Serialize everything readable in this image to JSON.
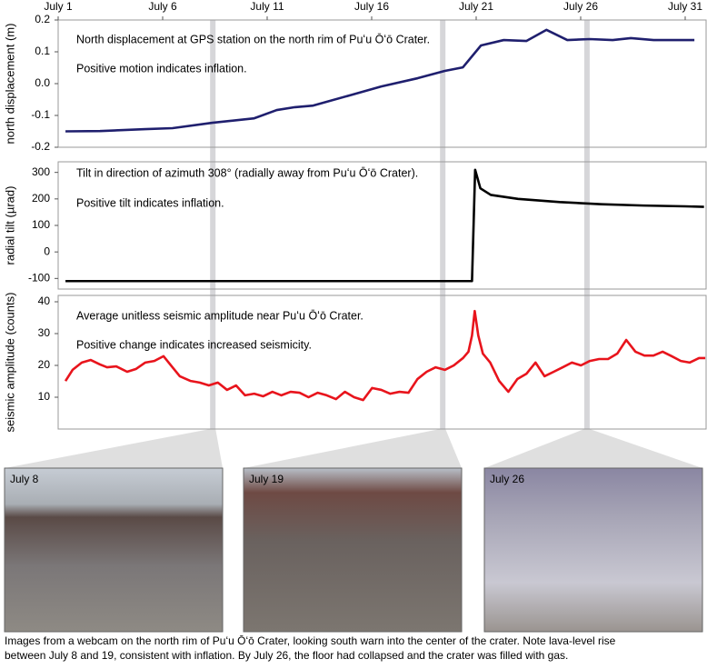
{
  "chart_data": [
    {
      "type": "line",
      "ylabel": "north displacement (m)",
      "annotations": [
        "North displacement at GPS station on the north rim of Puʻu Ōʻō Crater.",
        "Positive motion indicates inflation."
      ],
      "x": [
        1.35,
        3.0,
        5.17,
        6.47,
        8.38,
        10.38,
        11.46,
        12.33,
        13.2,
        14.94,
        16.46,
        18.2,
        19.5,
        20.36,
        21.23,
        22.32,
        23.4,
        24.36,
        25.36,
        26.44,
        27.53,
        28.4,
        29.49,
        30.79,
        31.44
      ],
      "values": [
        -0.15,
        -0.149,
        -0.143,
        -0.14,
        -0.123,
        -0.109,
        -0.083,
        -0.074,
        -0.069,
        -0.037,
        -0.009,
        0.017,
        0.04,
        0.051,
        0.12,
        0.137,
        0.134,
        0.169,
        0.137,
        0.14,
        0.137,
        0.143,
        0.137,
        0.137,
        0.137
      ],
      "color": "#1f1f6e",
      "xlim": [
        1,
        32
      ],
      "xticks": [
        {
          "value": 1,
          "label": "July 1"
        },
        {
          "value": 6,
          "label": "July 6"
        },
        {
          "value": 11,
          "label": "July 11"
        },
        {
          "value": 16,
          "label": "July 16"
        },
        {
          "value": 21,
          "label": "July 21"
        },
        {
          "value": 26,
          "label": "July 26"
        },
        {
          "value": 31,
          "label": "July 31"
        }
      ],
      "ylim": [
        -0.2,
        0.2
      ],
      "yticks": [
        0.2,
        0.1,
        {
          "value": 0,
          "label": "0.0"
        },
        -0.1,
        -0.2
      ]
    },
    {
      "type": "line",
      "ylabel": "radial tilt (µrad)",
      "annotations": [
        "Tilt in direction of azimuth 308° (radially away from Puʻu Ōʻō Crater).",
        "Positive tilt indicates inflation."
      ],
      "x": [
        1.35,
        10,
        20.8,
        20.95,
        21.2,
        21.7,
        23,
        25,
        27,
        29,
        31,
        31.9
      ],
      "values": [
        -110,
        -110,
        -110,
        310,
        240,
        215,
        200,
        188,
        180,
        175,
        172,
        170
      ],
      "color": "#000000",
      "xlim": [
        1,
        32
      ],
      "ylim": [
        -140,
        340
      ],
      "yticks": [
        300,
        200,
        100,
        0,
        -100
      ]
    },
    {
      "type": "line",
      "ylabel": "seismic amplitude (counts)",
      "annotations": [
        "Average unitless seismic amplitude near Puʻu Ōʻō Crater.",
        "Positive change indicates increased seismicity."
      ],
      "x": [
        1.35,
        1.69,
        2.13,
        2.56,
        3.0,
        3.34,
        3.78,
        4.3,
        4.73,
        5.17,
        5.6,
        6.04,
        6.47,
        6.82,
        7.34,
        7.77,
        8.21,
        8.64,
        9.08,
        9.51,
        9.94,
        10.38,
        10.81,
        11.25,
        11.68,
        12.12,
        12.55,
        12.98,
        13.42,
        13.85,
        14.29,
        14.72,
        15.16,
        15.59,
        16.02,
        16.46,
        16.89,
        17.33,
        17.76,
        18.19,
        18.63,
        19.06,
        19.5,
        19.93,
        20.37,
        20.63,
        20.8,
        20.93,
        21.1,
        21.32,
        21.67,
        22.1,
        22.54,
        22.97,
        23.41,
        23.84,
        24.27,
        24.71,
        25.14,
        25.58,
        26.01,
        26.44,
        26.88,
        27.31,
        27.75,
        28.18,
        28.62,
        29.05,
        29.48,
        29.92,
        30.35,
        30.79,
        31.22,
        31.66,
        31.96
      ],
      "values": [
        15.1,
        18.6,
        20.9,
        21.7,
        20.3,
        19.4,
        19.7,
        18,
        18.9,
        20.9,
        21.4,
        22.9,
        19.4,
        16.6,
        15.1,
        14.6,
        13.7,
        14.6,
        12.3,
        13.7,
        10.6,
        11.1,
        10.3,
        11.7,
        10.6,
        11.7,
        11.4,
        10,
        11.4,
        10.6,
        9.4,
        11.7,
        10,
        9.1,
        12.9,
        12.3,
        11.1,
        11.7,
        11.4,
        15.7,
        18,
        19.4,
        18.6,
        20,
        22.3,
        24.3,
        29.4,
        37.1,
        29.4,
        23.7,
        20.9,
        15.1,
        11.7,
        15.7,
        17.4,
        20.9,
        16.6,
        18,
        19.4,
        20.9,
        20,
        21.4,
        22,
        22,
        23.7,
        28,
        24.3,
        23.1,
        23.1,
        24.3,
        22.9,
        21.4,
        20.9,
        22.3,
        22.3
      ],
      "color": "#e8141c",
      "xlim": [
        1,
        32
      ],
      "ylim": [
        0,
        42
      ],
      "yticks": [
        40,
        30,
        20,
        10
      ]
    }
  ],
  "photos": [
    {
      "label": "July 8",
      "date": 8.4
    },
    {
      "label": "July 19",
      "date": 19.4
    },
    {
      "label": "July 26",
      "date": 26.3
    }
  ],
  "caption": [
    "Images from a webcam on the north rim of Puʻu Ōʻō Crater, looking south warn into the center of the crater.  Note lava-level rise",
    "between July 8 and 19, consistent with inflation.  By July 26, the floor had collapsed and the crater was filled with gas."
  ]
}
